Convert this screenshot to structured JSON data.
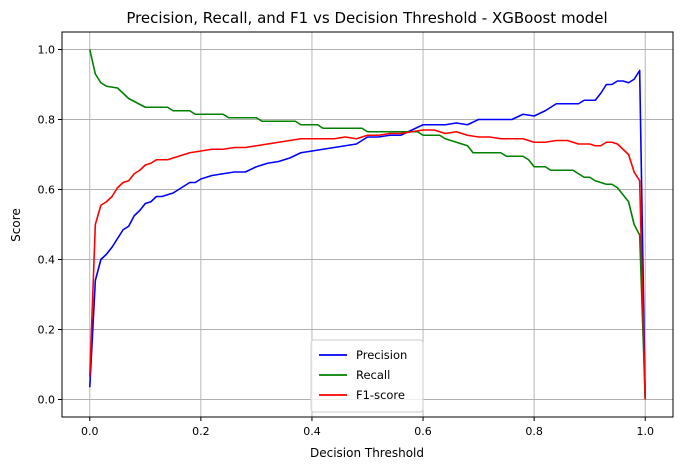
{
  "chart_data": {
    "type": "line",
    "title": "Precision, Recall, and F1 vs Decision Threshold - XGBoost model",
    "xlabel": "Decision Threshold",
    "ylabel": "Score",
    "xlim": [
      -0.05,
      1.05
    ],
    "ylim": [
      -0.05,
      1.05
    ],
    "xticks": [
      "0.0",
      "0.2",
      "0.4",
      "0.6",
      "0.8",
      "1.0"
    ],
    "xtick_values": [
      0.0,
      0.2,
      0.4,
      0.6,
      0.8,
      1.0
    ],
    "yticks": [
      "0.0",
      "0.2",
      "0.4",
      "0.6",
      "0.8",
      "1.0"
    ],
    "ytick_values": [
      0.0,
      0.2,
      0.4,
      0.6,
      0.8,
      1.0
    ],
    "grid": true,
    "legend_position": "bottom-center",
    "series": [
      {
        "name": "Precision",
        "color": "#0000ff",
        "points": [
          [
            0.0,
            0.035
          ],
          [
            0.01,
            0.34
          ],
          [
            0.02,
            0.4
          ],
          [
            0.03,
            0.415
          ],
          [
            0.04,
            0.435
          ],
          [
            0.05,
            0.46
          ],
          [
            0.06,
            0.485
          ],
          [
            0.07,
            0.495
          ],
          [
            0.08,
            0.525
          ],
          [
            0.09,
            0.54
          ],
          [
            0.1,
            0.56
          ],
          [
            0.11,
            0.565
          ],
          [
            0.12,
            0.58
          ],
          [
            0.13,
            0.58
          ],
          [
            0.14,
            0.585
          ],
          [
            0.15,
            0.59
          ],
          [
            0.16,
            0.6
          ],
          [
            0.17,
            0.61
          ],
          [
            0.18,
            0.62
          ],
          [
            0.19,
            0.62
          ],
          [
            0.2,
            0.63
          ],
          [
            0.22,
            0.64
          ],
          [
            0.24,
            0.645
          ],
          [
            0.26,
            0.65
          ],
          [
            0.28,
            0.65
          ],
          [
            0.3,
            0.665
          ],
          [
            0.32,
            0.675
          ],
          [
            0.34,
            0.68
          ],
          [
            0.36,
            0.69
          ],
          [
            0.38,
            0.705
          ],
          [
            0.4,
            0.71
          ],
          [
            0.42,
            0.715
          ],
          [
            0.44,
            0.72
          ],
          [
            0.46,
            0.725
          ],
          [
            0.48,
            0.73
          ],
          [
            0.5,
            0.75
          ],
          [
            0.52,
            0.75
          ],
          [
            0.54,
            0.755
          ],
          [
            0.56,
            0.755
          ],
          [
            0.58,
            0.77
          ],
          [
            0.6,
            0.785
          ],
          [
            0.62,
            0.785
          ],
          [
            0.64,
            0.785
          ],
          [
            0.66,
            0.79
          ],
          [
            0.68,
            0.785
          ],
          [
            0.7,
            0.8
          ],
          [
            0.72,
            0.8
          ],
          [
            0.74,
            0.8
          ],
          [
            0.76,
            0.8
          ],
          [
            0.78,
            0.815
          ],
          [
            0.8,
            0.81
          ],
          [
            0.82,
            0.825
          ],
          [
            0.84,
            0.845
          ],
          [
            0.86,
            0.845
          ],
          [
            0.88,
            0.845
          ],
          [
            0.89,
            0.855
          ],
          [
            0.9,
            0.855
          ],
          [
            0.91,
            0.855
          ],
          [
            0.92,
            0.875
          ],
          [
            0.93,
            0.9
          ],
          [
            0.94,
            0.9
          ],
          [
            0.95,
            0.91
          ],
          [
            0.96,
            0.91
          ],
          [
            0.97,
            0.905
          ],
          [
            0.98,
            0.915
          ],
          [
            0.99,
            0.94
          ],
          [
            1.0,
            0.0
          ]
        ]
      },
      {
        "name": "Recall",
        "color": "#008000",
        "points": [
          [
            0.0,
            1.0
          ],
          [
            0.01,
            0.93
          ],
          [
            0.02,
            0.905
          ],
          [
            0.03,
            0.895
          ],
          [
            0.05,
            0.89
          ],
          [
            0.06,
            0.875
          ],
          [
            0.07,
            0.86
          ],
          [
            0.1,
            0.835
          ],
          [
            0.14,
            0.835
          ],
          [
            0.15,
            0.825
          ],
          [
            0.18,
            0.825
          ],
          [
            0.19,
            0.815
          ],
          [
            0.24,
            0.815
          ],
          [
            0.25,
            0.805
          ],
          [
            0.3,
            0.805
          ],
          [
            0.31,
            0.795
          ],
          [
            0.37,
            0.795
          ],
          [
            0.38,
            0.785
          ],
          [
            0.41,
            0.785
          ],
          [
            0.42,
            0.775
          ],
          [
            0.49,
            0.775
          ],
          [
            0.5,
            0.765
          ],
          [
            0.59,
            0.765
          ],
          [
            0.6,
            0.755
          ],
          [
            0.63,
            0.755
          ],
          [
            0.64,
            0.745
          ],
          [
            0.66,
            0.735
          ],
          [
            0.68,
            0.725
          ],
          [
            0.69,
            0.705
          ],
          [
            0.74,
            0.705
          ],
          [
            0.75,
            0.695
          ],
          [
            0.78,
            0.695
          ],
          [
            0.79,
            0.685
          ],
          [
            0.8,
            0.665
          ],
          [
            0.82,
            0.665
          ],
          [
            0.83,
            0.655
          ],
          [
            0.87,
            0.655
          ],
          [
            0.88,
            0.645
          ],
          [
            0.89,
            0.635
          ],
          [
            0.9,
            0.635
          ],
          [
            0.91,
            0.625
          ],
          [
            0.93,
            0.615
          ],
          [
            0.94,
            0.615
          ],
          [
            0.95,
            0.605
          ],
          [
            0.96,
            0.585
          ],
          [
            0.97,
            0.565
          ],
          [
            0.98,
            0.5
          ],
          [
            0.99,
            0.47
          ],
          [
            1.0,
            0.0
          ]
        ]
      },
      {
        "name": "F1-score",
        "color": "#ff0000",
        "points": [
          [
            0.0,
            0.065
          ],
          [
            0.01,
            0.5
          ],
          [
            0.02,
            0.555
          ],
          [
            0.03,
            0.565
          ],
          [
            0.04,
            0.58
          ],
          [
            0.05,
            0.605
          ],
          [
            0.06,
            0.62
          ],
          [
            0.07,
            0.625
          ],
          [
            0.08,
            0.645
          ],
          [
            0.09,
            0.655
          ],
          [
            0.1,
            0.67
          ],
          [
            0.11,
            0.675
          ],
          [
            0.12,
            0.685
          ],
          [
            0.14,
            0.685
          ],
          [
            0.15,
            0.69
          ],
          [
            0.16,
            0.695
          ],
          [
            0.17,
            0.7
          ],
          [
            0.18,
            0.705
          ],
          [
            0.2,
            0.71
          ],
          [
            0.22,
            0.715
          ],
          [
            0.24,
            0.715
          ],
          [
            0.26,
            0.72
          ],
          [
            0.28,
            0.72
          ],
          [
            0.3,
            0.725
          ],
          [
            0.32,
            0.73
          ],
          [
            0.34,
            0.735
          ],
          [
            0.36,
            0.74
          ],
          [
            0.38,
            0.745
          ],
          [
            0.4,
            0.745
          ],
          [
            0.42,
            0.745
          ],
          [
            0.44,
            0.745
          ],
          [
            0.46,
            0.75
          ],
          [
            0.48,
            0.745
          ],
          [
            0.5,
            0.755
          ],
          [
            0.52,
            0.755
          ],
          [
            0.54,
            0.76
          ],
          [
            0.56,
            0.76
          ],
          [
            0.58,
            0.765
          ],
          [
            0.6,
            0.77
          ],
          [
            0.62,
            0.77
          ],
          [
            0.64,
            0.76
          ],
          [
            0.66,
            0.765
          ],
          [
            0.68,
            0.755
          ],
          [
            0.7,
            0.75
          ],
          [
            0.72,
            0.75
          ],
          [
            0.74,
            0.745
          ],
          [
            0.76,
            0.745
          ],
          [
            0.78,
            0.745
          ],
          [
            0.8,
            0.735
          ],
          [
            0.82,
            0.735
          ],
          [
            0.84,
            0.74
          ],
          [
            0.86,
            0.74
          ],
          [
            0.88,
            0.73
          ],
          [
            0.9,
            0.73
          ],
          [
            0.91,
            0.725
          ],
          [
            0.92,
            0.725
          ],
          [
            0.93,
            0.735
          ],
          [
            0.94,
            0.735
          ],
          [
            0.95,
            0.73
          ],
          [
            0.96,
            0.715
          ],
          [
            0.97,
            0.7
          ],
          [
            0.98,
            0.65
          ],
          [
            0.99,
            0.625
          ],
          [
            1.0,
            0.0
          ]
        ]
      }
    ]
  }
}
